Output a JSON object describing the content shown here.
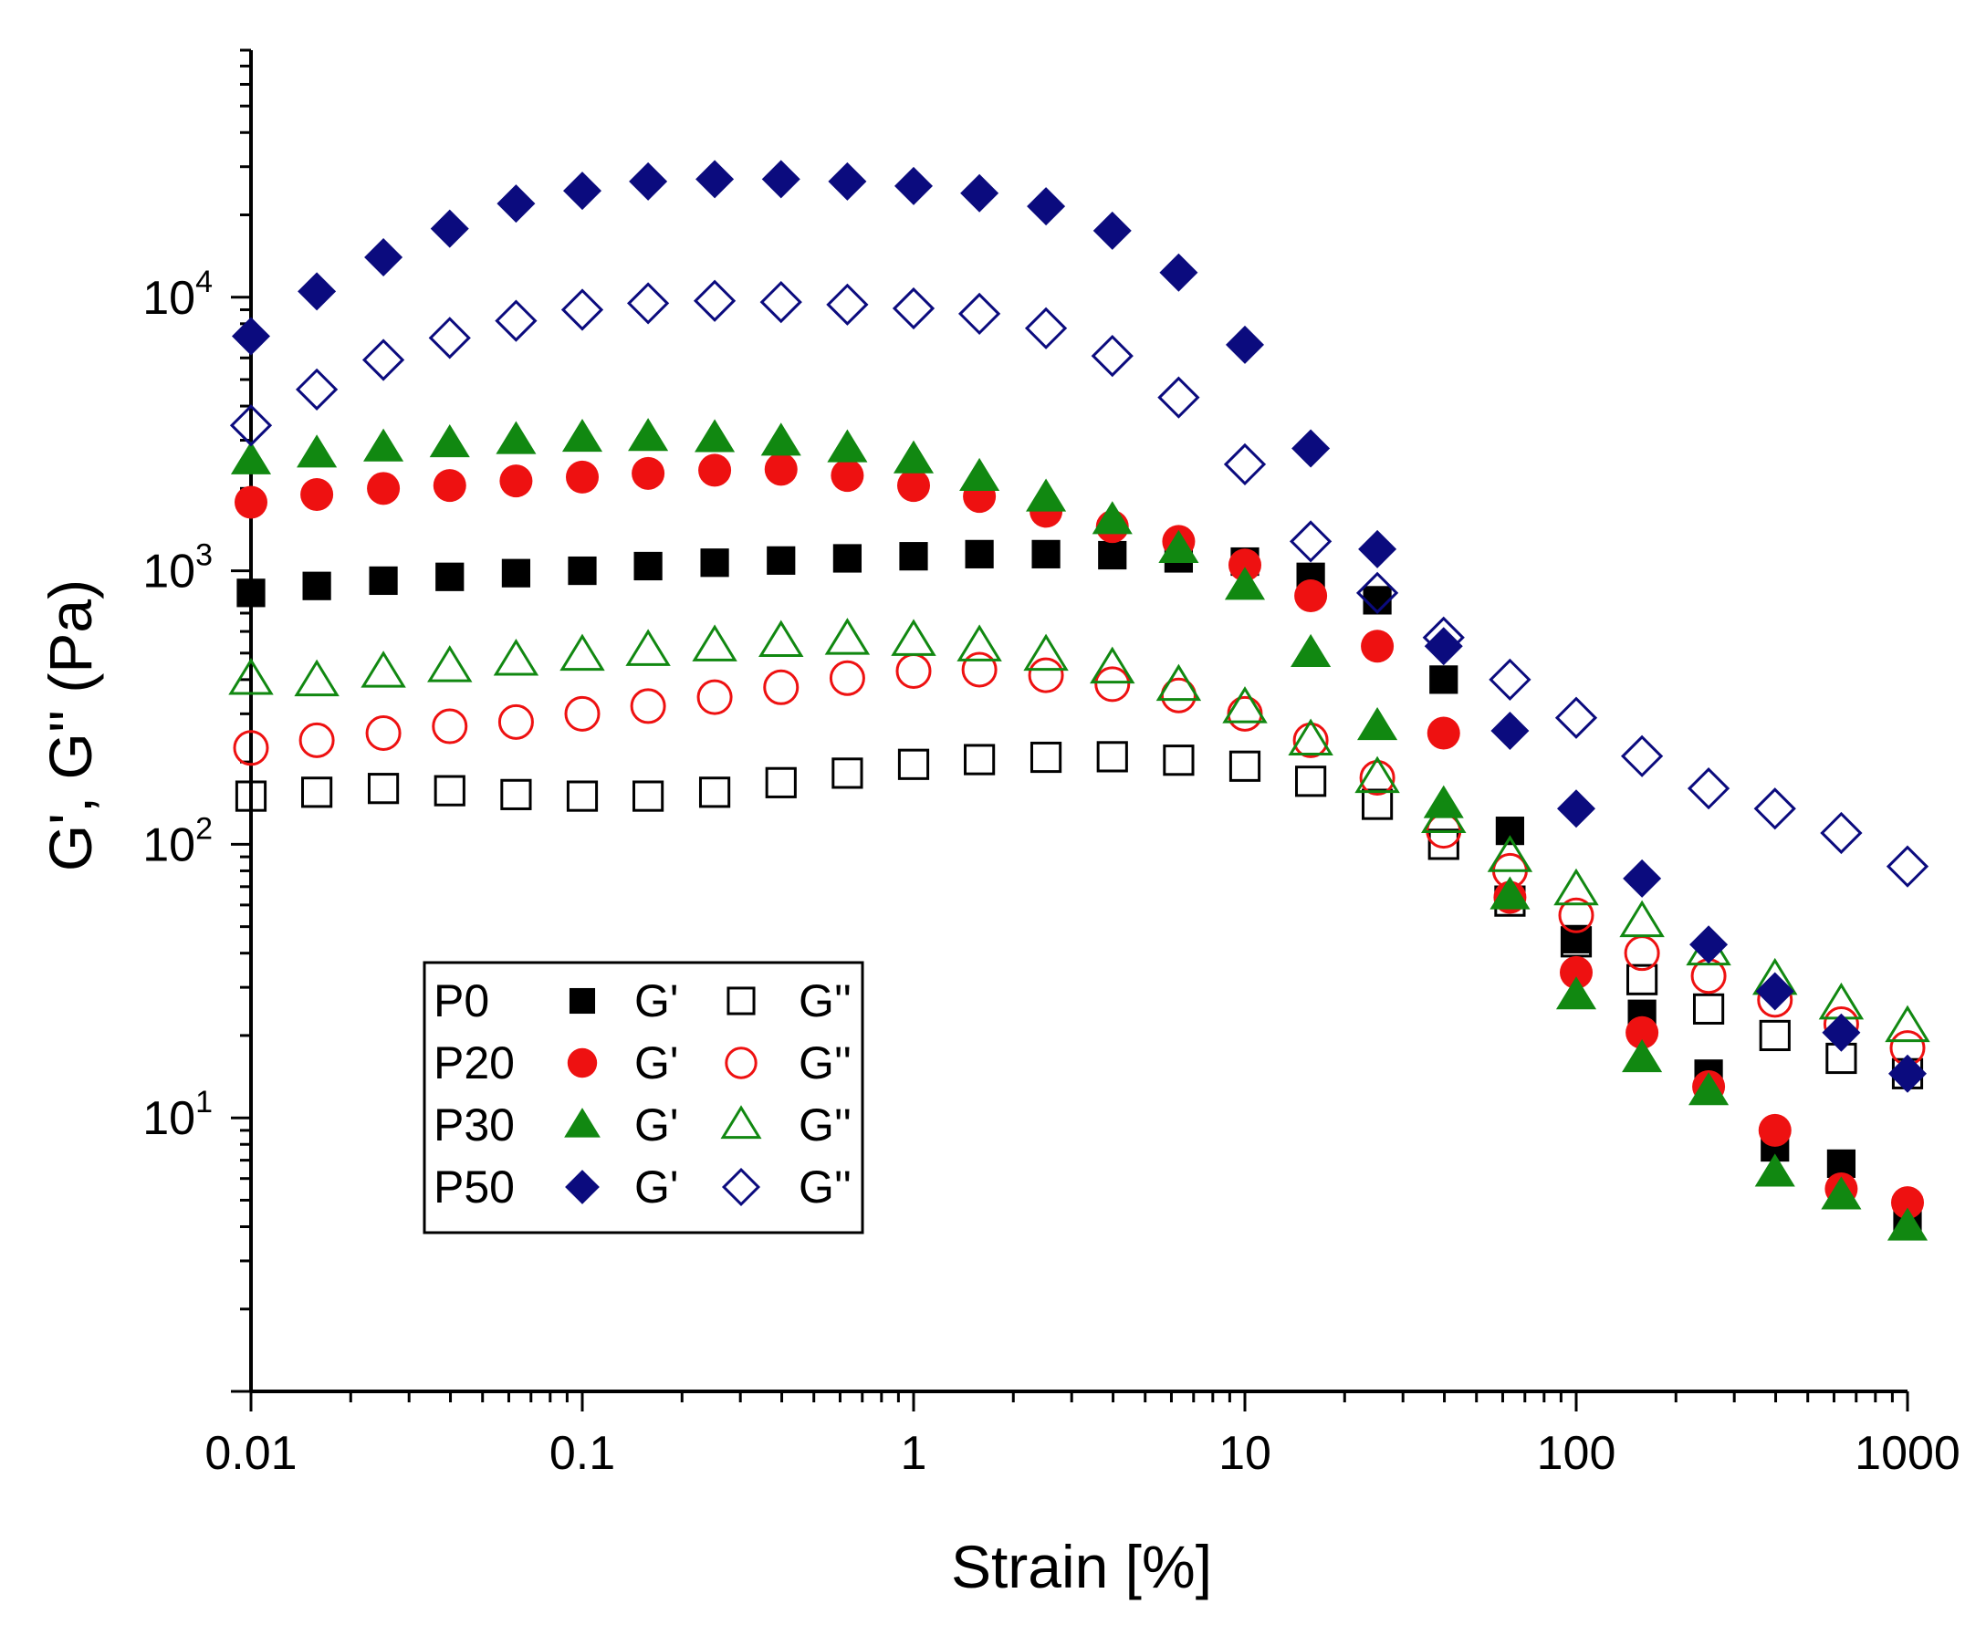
{
  "chart_data": {
    "type": "scatter",
    "x_scale": "log",
    "y_scale": "log",
    "xlabel": "Strain [%]",
    "ylabel": "G', G'' (Pa)",
    "xlim": [
      0.01,
      1000
    ],
    "ylim": [
      1,
      80000
    ],
    "x_ticks": [
      {
        "value": 0.01,
        "label": "0.01"
      },
      {
        "value": 0.1,
        "label": "0.1"
      },
      {
        "value": 1,
        "label": "1"
      },
      {
        "value": 10,
        "label": "10"
      },
      {
        "value": 100,
        "label": "100"
      },
      {
        "value": 1000,
        "label": "1000"
      }
    ],
    "y_ticks": [
      {
        "value": 10,
        "base": "10",
        "exp": "1"
      },
      {
        "value": 100,
        "base": "10",
        "exp": "2"
      },
      {
        "value": 1000,
        "base": "10",
        "exp": "3"
      },
      {
        "value": 10000,
        "base": "10",
        "exp": "4"
      }
    ],
    "x": [
      0.01,
      0.0158,
      0.0251,
      0.0398,
      0.0631,
      0.1,
      0.158,
      0.251,
      0.398,
      0.631,
      1,
      1.58,
      2.51,
      3.98,
      6.31,
      10,
      15.8,
      25.1,
      39.8,
      63.1,
      100,
      158,
      251,
      398,
      631,
      1000
    ],
    "series": [
      {
        "name": "P0 G'",
        "sample": "P0",
        "modulus": "G'",
        "marker": "square",
        "filled": true,
        "color": "#000000",
        "values": [
          830,
          880,
          920,
          950,
          980,
          1000,
          1040,
          1070,
          1090,
          1110,
          1130,
          1150,
          1150,
          1140,
          1110,
          1080,
          950,
          780,
          400,
          112,
          45,
          24,
          14.5,
          7.8,
          6.8,
          4.2
        ]
      },
      {
        "name": "P0 G''",
        "sample": "P0",
        "modulus": "G''",
        "marker": "square",
        "filled": false,
        "color": "#000000",
        "values": [
          150,
          155,
          160,
          157,
          152,
          150,
          150,
          155,
          168,
          182,
          196,
          204,
          208,
          209,
          203,
          193,
          170,
          140,
          100,
          62,
          44,
          32,
          25,
          20,
          16.5,
          14.5
        ]
      },
      {
        "name": "P20 G'",
        "sample": "P20",
        "modulus": "G'",
        "marker": "circle",
        "filled": true,
        "color": "#ee1111",
        "values": [
          1780,
          1900,
          2000,
          2050,
          2130,
          2200,
          2270,
          2330,
          2350,
          2230,
          2050,
          1870,
          1650,
          1450,
          1280,
          1050,
          810,
          530,
          255,
          64,
          34,
          20.5,
          13,
          9,
          5.5,
          4.9
        ]
      },
      {
        "name": "P20 G''",
        "sample": "P20",
        "modulus": "G''",
        "marker": "circle",
        "filled": false,
        "color": "#ee1111",
        "values": [
          225,
          240,
          255,
          270,
          280,
          300,
          320,
          345,
          375,
          405,
          430,
          435,
          415,
          385,
          350,
          300,
          240,
          175,
          112,
          80,
          55,
          40,
          33,
          27,
          22,
          18
        ]
      },
      {
        "name": "P30 G'",
        "sample": "P30",
        "modulus": "G'",
        "marker": "triangle",
        "filled": true,
        "color": "#118811",
        "values": [
          2530,
          2680,
          2820,
          2920,
          3000,
          3060,
          3080,
          3050,
          2960,
          2800,
          2550,
          2200,
          1850,
          1530,
          1200,
          880,
          500,
          270,
          140,
          65,
          28,
          16.5,
          12.5,
          6.3,
          5.2,
          4
        ]
      },
      {
        "name": "P30 G''",
        "sample": "P30",
        "modulus": "G''",
        "marker": "triangle",
        "filled": false,
        "color": "#118811",
        "values": [
          400,
          395,
          425,
          445,
          470,
          490,
          510,
          530,
          550,
          560,
          555,
          530,
          490,
          440,
          380,
          315,
          240,
          175,
          125,
          90,
          68,
          52,
          41,
          32,
          26,
          21.5
        ]
      },
      {
        "name": "P50 G'",
        "sample": "P50",
        "modulus": "G'",
        "marker": "diamond",
        "filled": true,
        "color": "#0b0b7e",
        "values": [
          7200,
          10500,
          14000,
          17800,
          22000,
          24500,
          26500,
          27000,
          27000,
          26500,
          25500,
          24000,
          21500,
          17500,
          12300,
          6700,
          2800,
          1200,
          530,
          260,
          135,
          75,
          43,
          29,
          20.5,
          14.5
        ]
      },
      {
        "name": "P50 G''",
        "sample": "P50",
        "modulus": "G''",
        "marker": "diamond",
        "filled": false,
        "color": "#0b0b7e",
        "values": [
          3400,
          4600,
          5900,
          7100,
          8200,
          9000,
          9500,
          9700,
          9600,
          9400,
          9100,
          8700,
          7700,
          6100,
          4300,
          2450,
          1280,
          830,
          570,
          400,
          290,
          210,
          160,
          135,
          110,
          83
        ]
      }
    ],
    "legend": {
      "position": "bottom-left",
      "rows": [
        {
          "sample": "P0",
          "gp": "G'",
          "gpp": "G''",
          "marker": "square",
          "color": "#000000"
        },
        {
          "sample": "P20",
          "gp": "G'",
          "gpp": "G''",
          "marker": "circle",
          "color": "#ee1111"
        },
        {
          "sample": "P30",
          "gp": "G'",
          "gpp": "G''",
          "marker": "triangle",
          "color": "#118811"
        },
        {
          "sample": "P50",
          "gp": "G'",
          "gpp": "G''",
          "marker": "diamond",
          "color": "#0b0b7e"
        }
      ]
    }
  }
}
